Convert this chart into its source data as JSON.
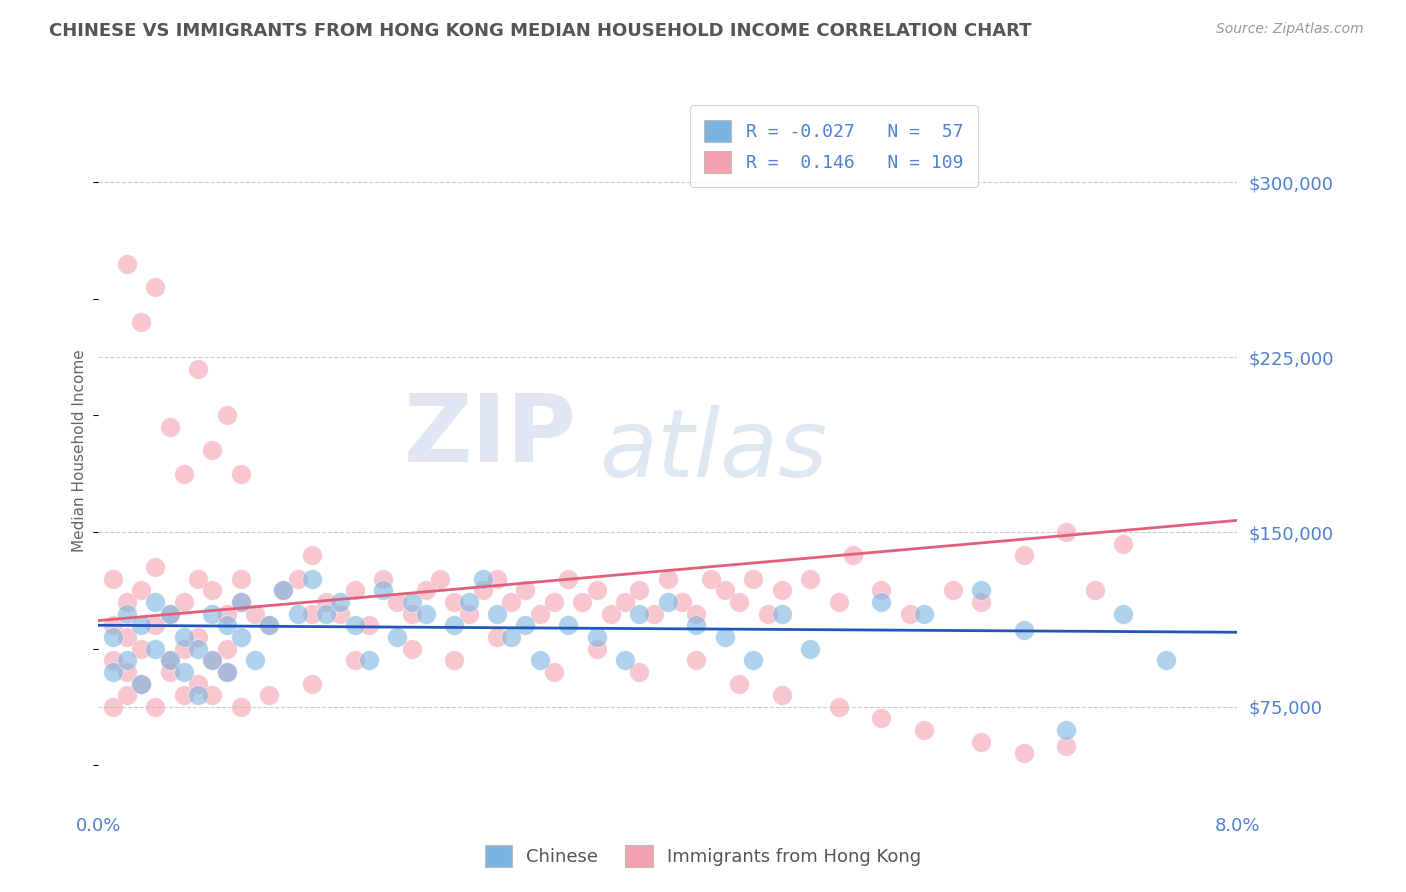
{
  "title": "CHINESE VS IMMIGRANTS FROM HONG KONG MEDIAN HOUSEHOLD INCOME CORRELATION CHART",
  "source_text": "Source: ZipAtlas.com",
  "ylabel": "Median Household Income",
  "xlim": [
    0.0,
    0.08
  ],
  "ylim": [
    30000,
    340000
  ],
  "yticks": [
    75000,
    150000,
    225000,
    300000
  ],
  "ytick_labels": [
    "$75,000",
    "$150,000",
    "$225,000",
    "$300,000"
  ],
  "xticks": [
    0.0,
    0.01,
    0.02,
    0.03,
    0.04,
    0.05,
    0.06,
    0.07,
    0.08
  ],
  "xtick_labels": [
    "0.0%",
    "",
    "",
    "",
    "",
    "",
    "",
    "",
    "8.0%"
  ],
  "color_chinese": "#7ab3e0",
  "color_hk": "#f4a0b0",
  "color_trendline_chinese": "#2255bb",
  "color_trendline_hk": "#e0607a",
  "R_chinese": -0.027,
  "N_chinese": 57,
  "R_hk": 0.146,
  "N_hk": 109,
  "watermark_zip": "ZIP",
  "watermark_atlas": "atlas",
  "legend_facecolor": "#ffffff",
  "legend_edgecolor": "#cccccc",
  "title_color": "#555555",
  "axis_label_color": "#5080d0",
  "grid_color": "#cccccc",
  "trendline_chinese_y0": 110000,
  "trendline_chinese_y1": 107000,
  "trendline_hk_y0": 112000,
  "trendline_hk_y1": 155000,
  "chinese_x": [
    0.001,
    0.001,
    0.002,
    0.002,
    0.003,
    0.003,
    0.004,
    0.004,
    0.005,
    0.005,
    0.006,
    0.006,
    0.007,
    0.007,
    0.008,
    0.008,
    0.009,
    0.009,
    0.01,
    0.01,
    0.011,
    0.012,
    0.013,
    0.014,
    0.015,
    0.016,
    0.017,
    0.018,
    0.019,
    0.02,
    0.021,
    0.022,
    0.023,
    0.025,
    0.026,
    0.027,
    0.028,
    0.029,
    0.03,
    0.031,
    0.033,
    0.035,
    0.037,
    0.038,
    0.04,
    0.042,
    0.044,
    0.046,
    0.048,
    0.05,
    0.055,
    0.058,
    0.062,
    0.065,
    0.068,
    0.072,
    0.075
  ],
  "chinese_y": [
    105000,
    90000,
    115000,
    95000,
    110000,
    85000,
    120000,
    100000,
    95000,
    115000,
    90000,
    105000,
    100000,
    80000,
    115000,
    95000,
    110000,
    90000,
    105000,
    120000,
    95000,
    110000,
    125000,
    115000,
    130000,
    115000,
    120000,
    110000,
    95000,
    125000,
    105000,
    120000,
    115000,
    110000,
    120000,
    130000,
    115000,
    105000,
    110000,
    95000,
    110000,
    105000,
    95000,
    115000,
    120000,
    110000,
    105000,
    95000,
    115000,
    100000,
    120000,
    115000,
    125000,
    108000,
    65000,
    115000,
    95000
  ],
  "hk_x": [
    0.001,
    0.001,
    0.001,
    0.002,
    0.002,
    0.002,
    0.003,
    0.003,
    0.004,
    0.004,
    0.005,
    0.005,
    0.006,
    0.006,
    0.007,
    0.007,
    0.008,
    0.008,
    0.009,
    0.009,
    0.01,
    0.01,
    0.011,
    0.012,
    0.013,
    0.014,
    0.015,
    0.015,
    0.016,
    0.017,
    0.018,
    0.019,
    0.02,
    0.021,
    0.022,
    0.023,
    0.024,
    0.025,
    0.026,
    0.027,
    0.028,
    0.029,
    0.03,
    0.031,
    0.032,
    0.033,
    0.034,
    0.035,
    0.036,
    0.037,
    0.038,
    0.039,
    0.04,
    0.041,
    0.042,
    0.043,
    0.044,
    0.045,
    0.046,
    0.047,
    0.048,
    0.05,
    0.052,
    0.053,
    0.055,
    0.057,
    0.06,
    0.062,
    0.065,
    0.068,
    0.07,
    0.072,
    0.001,
    0.002,
    0.003,
    0.004,
    0.005,
    0.006,
    0.007,
    0.008,
    0.009,
    0.01,
    0.012,
    0.015,
    0.018,
    0.022,
    0.025,
    0.028,
    0.032,
    0.035,
    0.038,
    0.042,
    0.045,
    0.048,
    0.052,
    0.055,
    0.058,
    0.062,
    0.065,
    0.068,
    0.002,
    0.003,
    0.004,
    0.005,
    0.006,
    0.007,
    0.008,
    0.009,
    0.01
  ],
  "hk_y": [
    130000,
    110000,
    95000,
    120000,
    105000,
    90000,
    125000,
    100000,
    135000,
    110000,
    115000,
    95000,
    120000,
    100000,
    130000,
    105000,
    125000,
    95000,
    115000,
    100000,
    120000,
    130000,
    115000,
    110000,
    125000,
    130000,
    140000,
    115000,
    120000,
    115000,
    125000,
    110000,
    130000,
    120000,
    115000,
    125000,
    130000,
    120000,
    115000,
    125000,
    130000,
    120000,
    125000,
    115000,
    120000,
    130000,
    120000,
    125000,
    115000,
    120000,
    125000,
    115000,
    130000,
    120000,
    115000,
    130000,
    125000,
    120000,
    130000,
    115000,
    125000,
    130000,
    120000,
    140000,
    125000,
    115000,
    125000,
    120000,
    140000,
    150000,
    125000,
    145000,
    75000,
    80000,
    85000,
    75000,
    90000,
    80000,
    85000,
    80000,
    90000,
    75000,
    80000,
    85000,
    95000,
    100000,
    95000,
    105000,
    90000,
    100000,
    90000,
    95000,
    85000,
    80000,
    75000,
    70000,
    65000,
    60000,
    55000,
    58000,
    265000,
    240000,
    255000,
    195000,
    175000,
    220000,
    185000,
    200000,
    175000
  ]
}
